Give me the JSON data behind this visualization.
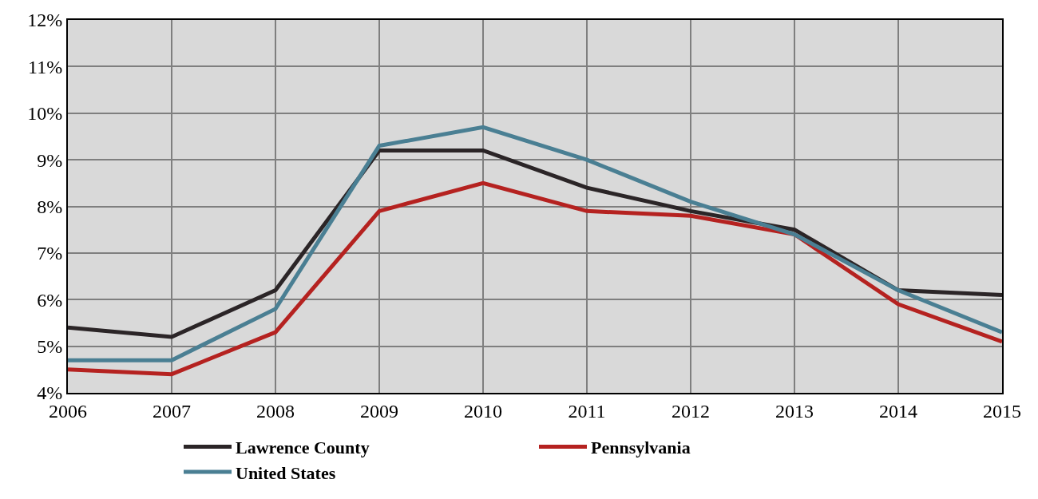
{
  "chart_data": {
    "type": "line",
    "x": [
      2006,
      2007,
      2008,
      2009,
      2010,
      2011,
      2012,
      2013,
      2014,
      2015
    ],
    "series": [
      {
        "name": "Lawrence County",
        "color": "#2b2527",
        "values": [
          5.4,
          5.2,
          6.2,
          9.2,
          9.2,
          8.4,
          7.9,
          7.5,
          6.2,
          6.1
        ]
      },
      {
        "name": "Pennsylvania",
        "color": "#b52220",
        "values": [
          4.5,
          4.4,
          5.3,
          7.9,
          8.5,
          7.9,
          7.8,
          7.4,
          5.9,
          5.1
        ]
      },
      {
        "name": "United States",
        "color": "#4a7f93",
        "values": [
          4.7,
          4.7,
          5.8,
          9.3,
          9.7,
          9.0,
          8.1,
          7.4,
          6.2,
          5.3
        ]
      }
    ],
    "xlim": [
      2006,
      2015
    ],
    "xticks": [
      2006,
      2007,
      2008,
      2009,
      2010,
      2011,
      2012,
      2013,
      2014,
      2015
    ],
    "ylim": [
      4,
      12
    ],
    "yticks": [
      {
        "value": 4,
        "label": "4%"
      },
      {
        "value": 5,
        "label": "5%"
      },
      {
        "value": 6,
        "label": "6%"
      },
      {
        "value": 7,
        "label": "7%"
      },
      {
        "value": 8,
        "label": "8%"
      },
      {
        "value": 9,
        "label": "9%"
      },
      {
        "value": 10,
        "label": "10%"
      },
      {
        "value": 11,
        "label": "11%"
      },
      {
        "value": 12,
        "label": "12%"
      }
    ],
    "grid": true,
    "legend": "bottom",
    "marker": "none",
    "line_style": "solid"
  }
}
